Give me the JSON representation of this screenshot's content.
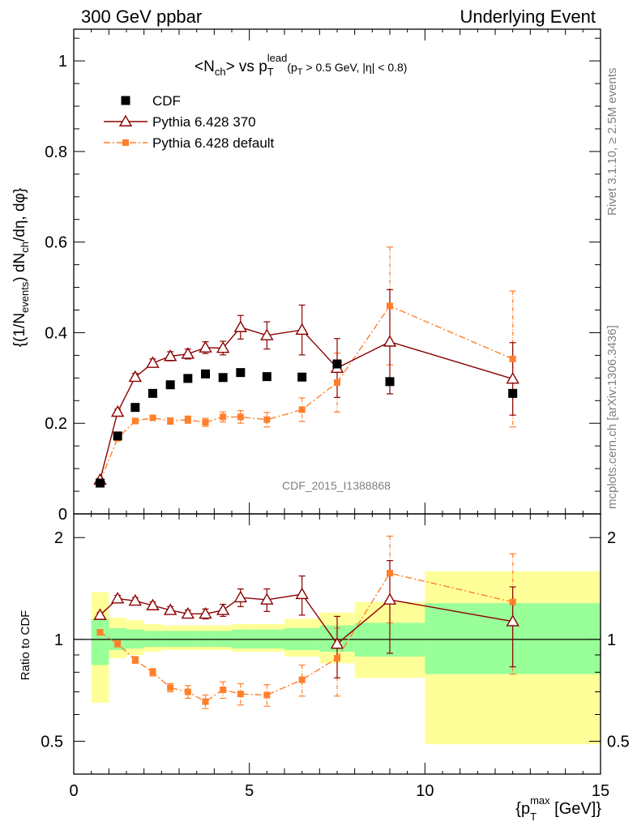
{
  "header": {
    "left": "300 GeV ppbar",
    "right": "Underlying Event"
  },
  "side_text": {
    "rivet": "Rivet 3.1.10, ≥ 2.5M events",
    "mcplots": "mcplots.cern.ch [arXiv:1306.3436]"
  },
  "watermark": "CDF_2015_I1388868",
  "chart_data": [
    {
      "type": "scatter",
      "title": "<Nch> vs pT lead (pT > 0.5 GeV, |η| < 0.8)",
      "ylabel": "{(1/Nevents) dNch/dη, dφ}",
      "xlabel": "",
      "xlim": [
        0,
        15
      ],
      "ylim": [
        0,
        1.07
      ],
      "y_ticks": [
        "0",
        "0.2",
        "0.4",
        "0.6",
        "0.8",
        "1"
      ],
      "legend_position": "top-left",
      "series": [
        {
          "name": "CDF",
          "marker": "filled-square",
          "color": "#000000",
          "x": [
            0.75,
            1.25,
            1.75,
            2.25,
            2.75,
            3.25,
            3.75,
            4.25,
            4.75,
            5.5,
            6.5,
            7.5,
            9.0,
            12.5
          ],
          "y": [
            0.068,
            0.172,
            0.235,
            0.266,
            0.285,
            0.299,
            0.309,
            0.301,
            0.312,
            0.303,
            0.302,
            0.331,
            0.292,
            0.266
          ]
        },
        {
          "name": "Pythia 6.428 370",
          "marker": "open-triangle",
          "color": "#8b0000",
          "line": "solid",
          "x": [
            0.75,
            1.25,
            1.75,
            2.25,
            2.75,
            3.25,
            3.75,
            4.25,
            4.75,
            5.5,
            6.5,
            7.5,
            9.0,
            12.5
          ],
          "y": [
            0.075,
            0.225,
            0.302,
            0.333,
            0.348,
            0.353,
            0.367,
            0.366,
            0.412,
            0.394,
            0.406,
            0.322,
            0.38,
            0.298
          ],
          "yerr": [
            0.004,
            0.006,
            0.008,
            0.009,
            0.01,
            0.011,
            0.013,
            0.015,
            0.026,
            0.03,
            0.055,
            0.065,
            0.115,
            0.08
          ]
        },
        {
          "name": "Pythia 6.428 default",
          "marker": "filled-square-small",
          "color": "#ff7f2a",
          "line": "dash-dot",
          "x": [
            0.75,
            1.25,
            1.75,
            2.25,
            2.75,
            3.25,
            3.75,
            4.25,
            4.75,
            5.5,
            6.5,
            7.5,
            9.0,
            12.5
          ],
          "y": [
            0.072,
            0.167,
            0.205,
            0.212,
            0.205,
            0.208,
            0.202,
            0.214,
            0.214,
            0.208,
            0.23,
            0.29,
            0.459,
            0.342
          ],
          "yerr": [
            0.004,
            0.005,
            0.006,
            0.006,
            0.007,
            0.008,
            0.009,
            0.011,
            0.014,
            0.016,
            0.026,
            0.065,
            0.13,
            0.15
          ]
        }
      ]
    },
    {
      "type": "scatter",
      "title": "",
      "ylabel": "Ratio to CDF",
      "xlabel": "{pT max [GeV]}",
      "xlim": [
        0,
        15
      ],
      "ylim": [
        0.4,
        2.35
      ],
      "log_y": true,
      "x_ticks": [
        "0",
        "5",
        "10",
        "15"
      ],
      "y_ticks": [
        "0.5",
        "1",
        "2"
      ],
      "bands": {
        "x_edges": [
          0.5,
          1.0,
          1.5,
          2.0,
          2.5,
          3.0,
          3.5,
          4.0,
          4.5,
          5.0,
          6.0,
          7.0,
          8.0,
          10.0,
          15.0
        ],
        "green_low": [
          0.84,
          0.93,
          0.94,
          0.95,
          0.95,
          0.95,
          0.95,
          0.95,
          0.94,
          0.94,
          0.93,
          0.92,
          0.89,
          0.79
        ],
        "green_high": [
          1.15,
          1.08,
          1.07,
          1.06,
          1.06,
          1.06,
          1.06,
          1.06,
          1.07,
          1.07,
          1.08,
          1.1,
          1.12,
          1.28
        ],
        "yellow_low": [
          0.65,
          0.88,
          0.9,
          0.92,
          0.93,
          0.93,
          0.93,
          0.93,
          0.92,
          0.92,
          0.89,
          0.85,
          0.77,
          0.49
        ],
        "yellow_high": [
          1.38,
          1.16,
          1.14,
          1.11,
          1.1,
          1.1,
          1.1,
          1.1,
          1.11,
          1.11,
          1.15,
          1.2,
          1.29,
          1.59
        ]
      },
      "reference_line": 1,
      "series": [
        {
          "name": "Pythia 6.428 370",
          "color": "#8b0000",
          "x": [
            0.75,
            1.25,
            1.75,
            2.25,
            2.75,
            3.25,
            3.75,
            4.25,
            4.75,
            5.5,
            6.5,
            7.5,
            9.0,
            12.5
          ],
          "y": [
            1.18,
            1.32,
            1.3,
            1.26,
            1.22,
            1.19,
            1.19,
            1.22,
            1.33,
            1.31,
            1.36,
            0.97,
            1.31,
            1.13
          ],
          "yerr": [
            0.02,
            0.03,
            0.03,
            0.03,
            0.03,
            0.03,
            0.04,
            0.05,
            0.08,
            0.1,
            0.18,
            0.2,
            0.4,
            0.3
          ]
        },
        {
          "name": "Pythia 6.428 default",
          "color": "#ff7f2a",
          "x": [
            0.75,
            1.25,
            1.75,
            2.25,
            2.75,
            3.25,
            3.75,
            4.25,
            4.75,
            5.5,
            6.5,
            7.5,
            9.0,
            12.5
          ],
          "y": [
            1.05,
            0.97,
            0.87,
            0.8,
            0.72,
            0.7,
            0.655,
            0.71,
            0.69,
            0.685,
            0.76,
            0.88,
            1.57,
            1.29
          ],
          "yerr": [
            0.02,
            0.02,
            0.02,
            0.02,
            0.02,
            0.03,
            0.03,
            0.04,
            0.05,
            0.05,
            0.08,
            0.2,
            0.45,
            0.5
          ]
        }
      ]
    }
  ]
}
